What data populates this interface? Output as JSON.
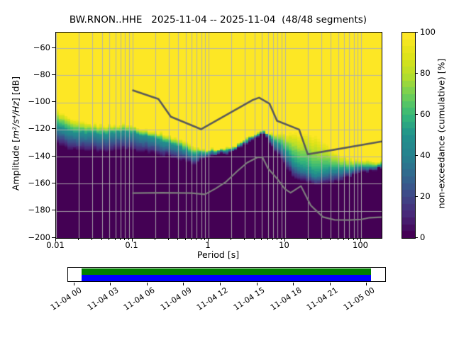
{
  "title": "BW.RNON..HHE   2025-11-04 -- 2025-11-04  (48/48 segments)",
  "axes": {
    "xlabel": "Period [s]",
    "ylabel_prefix": "Amplitude [",
    "ylabel_math": "m²/s⁴/Hz",
    "ylabel_suffix": "] [dB]",
    "x_tick_labels": [
      "0.01",
      "0.1",
      "1",
      "10",
      "100"
    ],
    "x_tick_values": [
      0.01,
      0.1,
      1,
      10,
      100
    ],
    "y_tick_labels": [
      "−60",
      "−80",
      "−100",
      "−120",
      "−140",
      "−160",
      "−180",
      "−200"
    ],
    "y_tick_values": [
      -60,
      -80,
      -100,
      -120,
      -140,
      -160,
      -180,
      -200
    ]
  },
  "colorbar": {
    "label": "non-exceedance (cumulative) [%]",
    "tick_labels": [
      "0",
      "20",
      "40",
      "60",
      "80",
      "100"
    ],
    "tick_values": [
      0,
      20,
      40,
      60,
      80,
      100
    ]
  },
  "timeline": {
    "tick_labels": [
      "11-04 00",
      "11-04 03",
      "11-04 06",
      "11-04 09",
      "11-04 12",
      "11-04 15",
      "11-04 18",
      "11-04 21",
      "11-05 00"
    ],
    "coverage_color": "#008000",
    "data_color": "#0000ff"
  },
  "chart_data": {
    "type": "heatmap",
    "title": "BW.RNON..HHE   2025-11-04 -- 2025-11-04  (48/48 segments)",
    "xlabel": "Period [s]",
    "ylabel": "Amplitude [m^2/s^4/Hz] [dB]",
    "colorbar_label": "non-exceedance (cumulative) [%]",
    "xscale": "log",
    "xlim": [
      0.01,
      186
    ],
    "ylim": [
      -200,
      -48.5
    ],
    "clim": [
      0,
      100
    ],
    "grid": true,
    "colormap": "viridis",
    "color_levels": 30,
    "period_bins_per_octave": 8,
    "db_bin_width": 1,
    "x_major_ticks": [
      0.01,
      0.1,
      1,
      10,
      100
    ],
    "y_major_ticks": [
      -60,
      -80,
      -100,
      -120,
      -140,
      -160,
      -180,
      -200
    ],
    "cumulative_envelope": {
      "columns": "period_s, db_at_100pct, db_at_50pct, db_at_0pct",
      "points": [
        [
          0.01,
          -104.5,
          -116.5,
          -130.5
        ],
        [
          0.0135,
          -109.5,
          -120.5,
          -133.5
        ],
        [
          0.017,
          -113.5,
          -122.5,
          -135.0
        ],
        [
          0.025,
          -115.5,
          -122.5,
          -136.0
        ],
        [
          0.04,
          -116.5,
          -123.0,
          -137.0
        ],
        [
          0.06,
          -116.5,
          -122.5,
          -136.5
        ],
        [
          0.08,
          -115.8,
          -121.5,
          -135.5
        ],
        [
          0.1,
          -116.8,
          -122.0,
          -136.0
        ],
        [
          0.15,
          -119.5,
          -125.0,
          -137.5
        ],
        [
          0.25,
          -122.5,
          -128.5,
          -139.5
        ],
        [
          0.3,
          -124.5,
          -130.0,
          -140.5
        ],
        [
          0.45,
          -127.5,
          -133.5,
          -143.0
        ],
        [
          0.61,
          -131.5,
          -138.0,
          -146.0
        ],
        [
          1.0,
          -134.5,
          -137.5,
          -140.5
        ],
        [
          1.5,
          -133.5,
          -135.5,
          -138.5
        ],
        [
          2.0,
          -133.0,
          -135.0,
          -137.5
        ],
        [
          2.7,
          -129.0,
          -130.5,
          -132.5
        ],
        [
          4.0,
          -123.5,
          -124.7,
          -126.5
        ],
        [
          5.3,
          -120.7,
          -121.4,
          -122.5
        ],
        [
          7.0,
          -122.3,
          -127.0,
          -134.0
        ],
        [
          8.5,
          -122.8,
          -131.0,
          -141.0
        ],
        [
          10.5,
          -123.0,
          -137.0,
          -149.0
        ],
        [
          13.0,
          -122.7,
          -144.0,
          -156.0
        ],
        [
          18.0,
          -122.6,
          -149.0,
          -158.0
        ],
        [
          25.0,
          -124.8,
          -153.0,
          -161.0
        ],
        [
          35.0,
          -130.5,
          -150.0,
          -160.5
        ],
        [
          45.0,
          -136.5,
          -149.0,
          -159.5
        ],
        [
          60.0,
          -140.0,
          -149.5,
          -156.5
        ],
        [
          80.0,
          -141.5,
          -148.5,
          -154.0
        ],
        [
          110.0,
          -142.5,
          -147.5,
          -151.5
        ],
        [
          186.0,
          -143.3,
          -146.5,
          -149.0
        ]
      ]
    },
    "noise_models": {
      "high_color": "#5a5a5a",
      "low_color": "#7d7d7d",
      "high": [
        [
          0.1,
          -91.0
        ],
        [
          0.22,
          -97.5
        ],
        [
          0.32,
          -110.5
        ],
        [
          0.8,
          -119.8
        ],
        [
          3.8,
          -98.2
        ],
        [
          4.6,
          -96.5
        ],
        [
          6.3,
          -101.0
        ],
        [
          7.9,
          -113.5
        ],
        [
          15.4,
          -120.0
        ],
        [
          20.0,
          -138.3
        ],
        [
          186.0,
          -128.8
        ]
      ],
      "low": [
        [
          0.1,
          -166.9
        ],
        [
          0.25,
          -166.6
        ],
        [
          0.6,
          -166.9
        ],
        [
          0.9,
          -167.8
        ],
        [
          1.24,
          -163.5
        ],
        [
          1.7,
          -158.5
        ],
        [
          2.4,
          -150.5
        ],
        [
          3.2,
          -144.5
        ],
        [
          4.4,
          -140.4
        ],
        [
          5.1,
          -140.5
        ],
        [
          6.0,
          -148.5
        ],
        [
          8.0,
          -156.5
        ],
        [
          10.0,
          -163.8
        ],
        [
          11.9,
          -166.6
        ],
        [
          16.3,
          -161.7
        ],
        [
          21.9,
          -176.0
        ],
        [
          31.6,
          -184.5
        ],
        [
          45.0,
          -186.6
        ],
        [
          70.0,
          -186.7
        ],
        [
          101.0,
          -186.3
        ],
        [
          130.0,
          -185.0
        ],
        [
          186.0,
          -184.7
        ]
      ]
    },
    "timeline": {
      "start": "11-04 00",
      "end": "11-05 00",
      "tick_interval_hours": 3
    }
  }
}
